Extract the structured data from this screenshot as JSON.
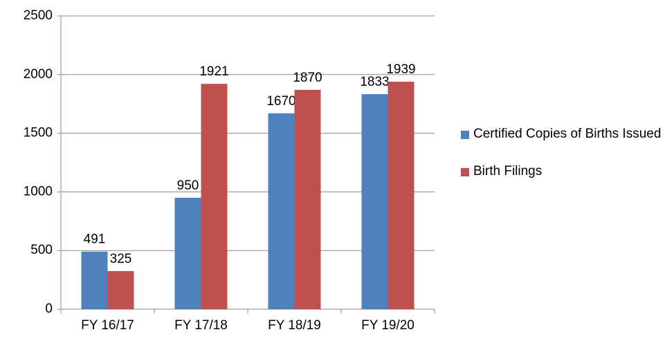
{
  "chart_data": {
    "type": "bar",
    "categories": [
      "FY 16/17",
      "FY 17/18",
      "FY 18/19",
      "FY 19/20"
    ],
    "series": [
      {
        "name": "Certified Copies of Births Issued",
        "color": "#4f81bd",
        "values": [
          491,
          950,
          1670,
          1833
        ]
      },
      {
        "name": "Birth Filings",
        "color": "#c0504d",
        "values": [
          325,
          1921,
          1870,
          1939
        ]
      }
    ],
    "ylim": [
      0,
      2500
    ],
    "yticks": [
      0,
      500,
      1000,
      1500,
      2000,
      2500
    ],
    "grid": true,
    "legend": "right"
  }
}
